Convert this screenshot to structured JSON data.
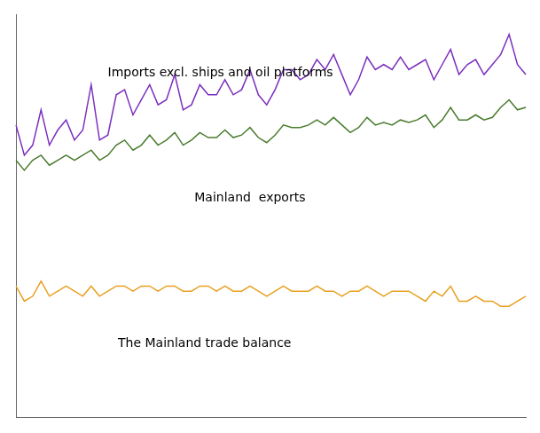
{
  "chart_data": {
    "type": "line",
    "categories": [
      null,
      null,
      null,
      null,
      null,
      null,
      null,
      null,
      null,
      null,
      null,
      null,
      null,
      null,
      null,
      null,
      null,
      null,
      null,
      null,
      null,
      null,
      null,
      null,
      null,
      null,
      null,
      null,
      null,
      null,
      null,
      null,
      null,
      null,
      null,
      null,
      null,
      null,
      null,
      null,
      null,
      null,
      null,
      null,
      null,
      null,
      null,
      null,
      null,
      null,
      null,
      null,
      null,
      null,
      null,
      null,
      null,
      null,
      null,
      null,
      null,
      null
    ],
    "series": [
      {
        "color": "#7b2fbe",
        "values": [
          56,
          44,
          48,
          62,
          48,
          54,
          58,
          50,
          54,
          72,
          50,
          52,
          68,
          70,
          60,
          66,
          72,
          64,
          66,
          76,
          62,
          64,
          72,
          68,
          68,
          74,
          68,
          70,
          78,
          68,
          64,
          70,
          78,
          78,
          74,
          76,
          82,
          78,
          84,
          76,
          68,
          74,
          83,
          78,
          80,
          78,
          83,
          78,
          80,
          82,
          74,
          80,
          86,
          76,
          80,
          82,
          76,
          80,
          84,
          92,
          80,
          76
        ]
      },
      {
        "color": "#4a7c2f",
        "values": [
          42,
          38,
          42,
          44,
          40,
          42,
          44,
          42,
          44,
          46,
          42,
          44,
          48,
          50,
          46,
          48,
          52,
          48,
          50,
          53,
          48,
          50,
          53,
          51,
          51,
          54,
          51,
          52,
          55,
          51,
          49,
          52,
          56,
          55,
          55,
          56,
          58,
          56,
          59,
          56,
          53,
          55,
          59,
          56,
          57,
          56,
          58,
          57,
          58,
          60,
          55,
          58,
          63,
          58,
          58,
          60,
          58,
          59,
          63,
          66,
          62,
          63
        ]
      },
      {
        "color": "#e8a020",
        "values": [
          -8,
          -14,
          -12,
          -6,
          -12,
          -10,
          -8,
          -10,
          -12,
          -8,
          -12,
          -10,
          -8,
          -8,
          -10,
          -8,
          -8,
          -10,
          -8,
          -8,
          -10,
          -10,
          -8,
          -8,
          -10,
          -8,
          -10,
          -10,
          -8,
          -10,
          -12,
          -10,
          -8,
          -10,
          -10,
          -10,
          -8,
          -10,
          -10,
          -12,
          -10,
          -10,
          -8,
          -10,
          -12,
          -10,
          -10,
          -10,
          -12,
          -14,
          -10,
          -12,
          -8,
          -14,
          -14,
          -12,
          -14,
          -14,
          -16,
          -16,
          -14,
          -12
        ]
      }
    ],
    "annotations": [
      "Imports excl. ships and oil platforms",
      "Mainland  exports",
      "The Mainland trade balance"
    ],
    "ylim": [
      -60,
      100
    ],
    "grid": false,
    "tick_labels": false
  }
}
